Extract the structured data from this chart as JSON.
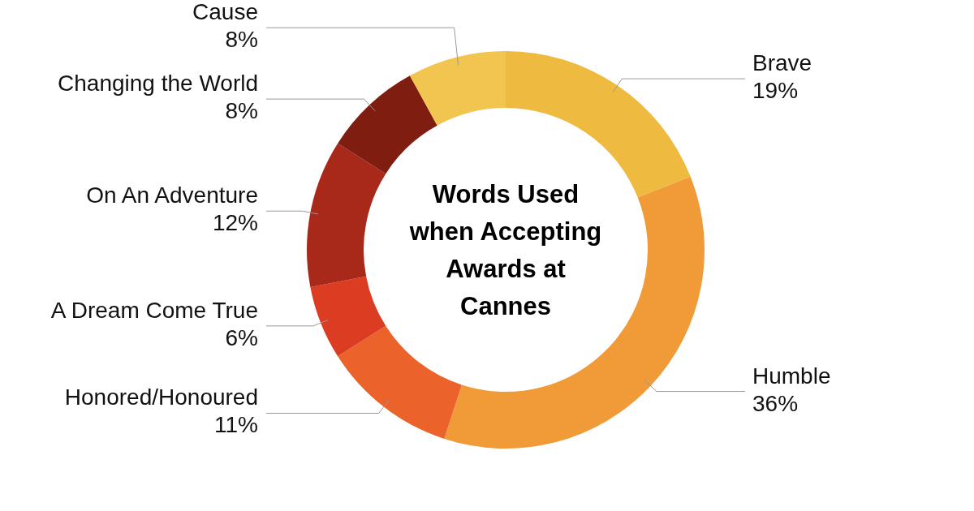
{
  "chart_data": {
    "type": "donut",
    "title": "Words Used when Accepting Awards at Cannes",
    "categories": [
      "Brave",
      "Humble",
      "Honored/Honoured",
      "A Dream Come True",
      "On An Adventure",
      "Changing the World",
      "Cause"
    ],
    "values": [
      19,
      36,
      11,
      6,
      12,
      8,
      8
    ],
    "colors": [
      "#eebb40",
      "#f09a38",
      "#eb622a",
      "#dc3c22",
      "#a8281a",
      "#7e1d10",
      "#f2c550"
    ],
    "value_labels": [
      "19%",
      "36%",
      "11%",
      "6%",
      "12%",
      "8%",
      "8%"
    ]
  }
}
